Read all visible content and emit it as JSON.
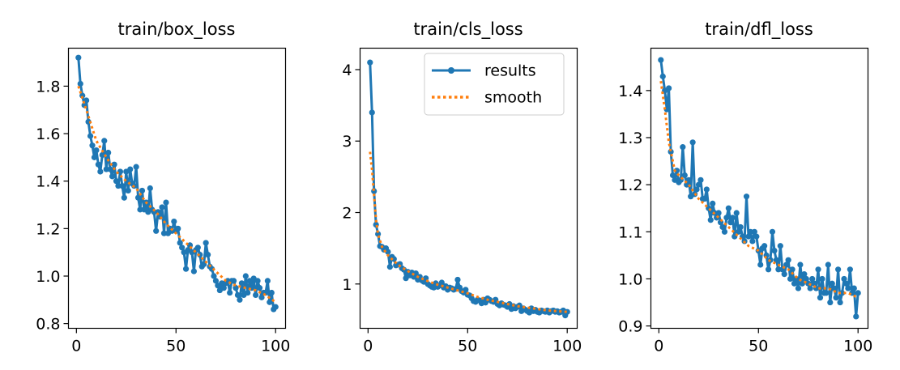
{
  "colors": {
    "results": "#1f77b4",
    "smooth": "#ff7f0e",
    "axis": "#000000",
    "legend_border": "#cccccc"
  },
  "legend": {
    "results_label": "results",
    "smooth_label": "smooth"
  },
  "chart_data": [
    {
      "type": "line",
      "title": "train/box_loss",
      "xlim": [
        -4,
        105
      ],
      "ylim": [
        0.78,
        1.96
      ],
      "xticks": [
        0,
        50,
        100
      ],
      "xtick_labels": [
        "0",
        "50",
        "100"
      ],
      "yticks": [
        0.8,
        1.0,
        1.2,
        1.4,
        1.6,
        1.8
      ],
      "ytick_labels": [
        "0.8",
        "1.0",
        "1.2",
        "1.4",
        "1.6",
        "1.8"
      ],
      "series": [
        {
          "name": "results",
          "x": [
            1,
            2,
            3,
            4,
            5,
            6,
            7,
            8,
            9,
            10,
            11,
            12,
            13,
            14,
            15,
            16,
            17,
            18,
            19,
            20,
            21,
            22,
            23,
            24,
            25,
            26,
            27,
            28,
            29,
            30,
            31,
            32,
            33,
            34,
            35,
            36,
            37,
            38,
            39,
            40,
            41,
            42,
            43,
            44,
            45,
            46,
            47,
            48,
            49,
            50,
            51,
            52,
            53,
            54,
            55,
            56,
            57,
            58,
            59,
            60,
            61,
            62,
            63,
            64,
            65,
            66,
            67,
            68,
            69,
            70,
            71,
            72,
            73,
            74,
            75,
            76,
            77,
            78,
            79,
            80,
            81,
            82,
            83,
            84,
            85,
            86,
            87,
            88,
            89,
            90,
            91,
            92,
            93,
            94,
            95,
            96,
            97,
            98,
            99,
            100
          ],
          "y": [
            1.92,
            1.81,
            1.76,
            1.72,
            1.74,
            1.65,
            1.59,
            1.55,
            1.5,
            1.53,
            1.47,
            1.44,
            1.51,
            1.57,
            1.45,
            1.52,
            1.45,
            1.42,
            1.47,
            1.4,
            1.38,
            1.44,
            1.38,
            1.33,
            1.44,
            1.36,
            1.45,
            1.39,
            1.38,
            1.46,
            1.33,
            1.28,
            1.36,
            1.28,
            1.31,
            1.27,
            1.37,
            1.28,
            1.27,
            1.19,
            1.27,
            1.25,
            1.29,
            1.18,
            1.31,
            1.18,
            1.2,
            1.19,
            1.23,
            1.19,
            1.2,
            1.14,
            1.12,
            1.1,
            1.03,
            1.11,
            1.13,
            1.1,
            1.02,
            1.11,
            1.12,
            1.09,
            1.04,
            1.05,
            1.14,
            1.09,
            1.04,
            1.03,
            1.0,
            0.98,
            0.96,
            0.94,
            0.97,
            0.95,
            0.97,
            0.98,
            0.93,
            0.98,
            0.98,
            0.95,
            0.92,
            0.9,
            0.97,
            0.92,
            1.0,
            0.93,
            0.98,
            0.95,
            0.99,
            0.92,
            0.98,
            0.95,
            0.91,
            0.93,
            0.93,
            0.98,
            0.89,
            0.93,
            0.86,
            0.87
          ]
        },
        {
          "name": "smooth",
          "x": [
            1,
            5,
            10,
            15,
            20,
            25,
            30,
            35,
            40,
            45,
            50,
            55,
            60,
            65,
            70,
            75,
            80,
            85,
            90,
            95,
            100
          ],
          "y": [
            1.8,
            1.7,
            1.57,
            1.5,
            1.44,
            1.4,
            1.37,
            1.31,
            1.27,
            1.22,
            1.18,
            1.14,
            1.1,
            1.06,
            1.02,
            0.98,
            0.96,
            0.95,
            0.94,
            0.92,
            0.89
          ]
        }
      ]
    },
    {
      "type": "line",
      "title": "train/cls_loss",
      "xlim": [
        -4,
        105
      ],
      "ylim": [
        0.38,
        4.3
      ],
      "xticks": [
        0,
        50,
        100
      ],
      "xtick_labels": [
        "0",
        "50",
        "100"
      ],
      "yticks": [
        1,
        2,
        3,
        4
      ],
      "ytick_labels": [
        "1",
        "2",
        "3",
        "4"
      ],
      "series": [
        {
          "name": "results",
          "x": [
            1,
            2,
            3,
            4,
            5,
            6,
            7,
            8,
            9,
            10,
            11,
            12,
            13,
            14,
            15,
            16,
            17,
            18,
            19,
            20,
            21,
            22,
            23,
            24,
            25,
            26,
            27,
            28,
            29,
            30,
            31,
            32,
            33,
            34,
            35,
            36,
            37,
            38,
            39,
            40,
            41,
            42,
            43,
            44,
            45,
            46,
            47,
            48,
            49,
            50,
            51,
            52,
            53,
            54,
            55,
            56,
            57,
            58,
            59,
            60,
            61,
            62,
            63,
            64,
            65,
            66,
            67,
            68,
            69,
            70,
            71,
            72,
            73,
            74,
            75,
            76,
            77,
            78,
            79,
            80,
            81,
            82,
            83,
            84,
            85,
            86,
            87,
            88,
            89,
            90,
            91,
            92,
            93,
            94,
            95,
            96,
            97,
            98,
            99,
            100
          ],
          "y": [
            4.1,
            3.4,
            2.3,
            1.83,
            1.7,
            1.53,
            1.52,
            1.48,
            1.5,
            1.45,
            1.24,
            1.38,
            1.35,
            1.26,
            1.27,
            1.28,
            1.22,
            1.2,
            1.08,
            1.17,
            1.12,
            1.16,
            1.1,
            1.15,
            1.06,
            1.1,
            1.05,
            1.03,
            1.08,
            1.0,
            0.98,
            0.96,
            0.95,
            1.01,
            0.96,
            0.98,
            1.02,
            0.95,
            0.97,
            0.92,
            0.95,
            0.94,
            0.92,
            0.93,
            1.06,
            0.95,
            0.9,
            0.88,
            0.92,
            0.85,
            0.84,
            0.8,
            0.76,
            0.75,
            0.78,
            0.77,
            0.73,
            0.78,
            0.74,
            0.8,
            0.78,
            0.76,
            0.75,
            0.78,
            0.72,
            0.7,
            0.73,
            0.71,
            0.7,
            0.68,
            0.72,
            0.65,
            0.69,
            0.66,
            0.68,
            0.7,
            0.62,
            0.66,
            0.64,
            0.62,
            0.6,
            0.66,
            0.62,
            0.64,
            0.61,
            0.6,
            0.63,
            0.62,
            0.61,
            0.63,
            0.6,
            0.62,
            0.63,
            0.61,
            0.62,
            0.6,
            0.61,
            0.63,
            0.56,
            0.61
          ]
        },
        {
          "name": "smooth",
          "x": [
            1,
            2,
            3,
            4,
            5,
            7,
            10,
            15,
            20,
            25,
            30,
            35,
            40,
            45,
            50,
            55,
            60,
            65,
            70,
            75,
            80,
            85,
            90,
            95,
            100
          ],
          "y": [
            2.85,
            2.6,
            2.25,
            1.9,
            1.7,
            1.52,
            1.4,
            1.27,
            1.18,
            1.1,
            1.04,
            0.99,
            0.95,
            0.91,
            0.87,
            0.82,
            0.78,
            0.75,
            0.72,
            0.69,
            0.67,
            0.65,
            0.63,
            0.62,
            0.61
          ]
        }
      ]
    },
    {
      "type": "line",
      "title": "train/dfl_loss",
      "xlim": [
        -4,
        105
      ],
      "ylim": [
        0.895,
        1.49
      ],
      "xticks": [
        0,
        50,
        100
      ],
      "xtick_labels": [
        "0",
        "50",
        "100"
      ],
      "yticks": [
        0.9,
        1.0,
        1.1,
        1.2,
        1.3,
        1.4
      ],
      "ytick_labels": [
        "0.9",
        "1.0",
        "1.1",
        "1.2",
        "1.3",
        "1.4"
      ],
      "series": [
        {
          "name": "results",
          "x": [
            1,
            2,
            3,
            4,
            5,
            6,
            7,
            8,
            9,
            10,
            11,
            12,
            13,
            14,
            15,
            16,
            17,
            18,
            19,
            20,
            21,
            22,
            23,
            24,
            25,
            26,
            27,
            28,
            29,
            30,
            31,
            32,
            33,
            34,
            35,
            36,
            37,
            38,
            39,
            40,
            41,
            42,
            43,
            44,
            45,
            46,
            47,
            48,
            49,
            50,
            51,
            52,
            53,
            54,
            55,
            56,
            57,
            58,
            59,
            60,
            61,
            62,
            63,
            64,
            65,
            66,
            67,
            68,
            69,
            70,
            71,
            72,
            73,
            74,
            75,
            76,
            77,
            78,
            79,
            80,
            81,
            82,
            83,
            84,
            85,
            86,
            87,
            88,
            89,
            90,
            91,
            92,
            93,
            94,
            95,
            96,
            97,
            98,
            99,
            100
          ],
          "y": [
            1.465,
            1.43,
            1.4,
            1.36,
            1.405,
            1.27,
            1.22,
            1.21,
            1.23,
            1.205,
            1.21,
            1.28,
            1.22,
            1.2,
            1.21,
            1.175,
            1.29,
            1.18,
            1.19,
            1.2,
            1.21,
            1.17,
            1.17,
            1.19,
            1.15,
            1.125,
            1.16,
            1.14,
            1.13,
            1.14,
            1.12,
            1.11,
            1.1,
            1.13,
            1.15,
            1.12,
            1.13,
            1.09,
            1.14,
            1.1,
            1.11,
            1.09,
            1.08,
            1.175,
            1.09,
            1.1,
            1.08,
            1.1,
            1.09,
            1.06,
            1.03,
            1.065,
            1.07,
            1.05,
            1.02,
            1.04,
            1.1,
            1.06,
            1.04,
            1.02,
            1.07,
            1.02,
            1.01,
            1.03,
            1.04,
            1.0,
            1.02,
            0.99,
            1.0,
            0.98,
            1.03,
            0.99,
            1.01,
            1.0,
            0.99,
            0.98,
            1.0,
            0.99,
            0.98,
            1.02,
            0.96,
            1.0,
            0.97,
            0.97,
            1.03,
            0.95,
            0.99,
            0.98,
            0.96,
            1.02,
            0.95,
            0.97,
            1.0,
            0.99,
            0.98,
            1.02,
            0.97,
            0.98,
            0.92,
            0.97
          ]
        },
        {
          "name": "smooth",
          "x": [
            1,
            3,
            5,
            8,
            10,
            15,
            20,
            25,
            30,
            35,
            40,
            45,
            50,
            55,
            60,
            65,
            70,
            75,
            80,
            85,
            90,
            95,
            100
          ],
          "y": [
            1.42,
            1.36,
            1.29,
            1.23,
            1.22,
            1.2,
            1.17,
            1.15,
            1.13,
            1.11,
            1.09,
            1.07,
            1.06,
            1.04,
            1.03,
            1.02,
            1.0,
            0.99,
            0.98,
            0.98,
            0.97,
            0.97,
            0.96
          ]
        }
      ]
    }
  ]
}
